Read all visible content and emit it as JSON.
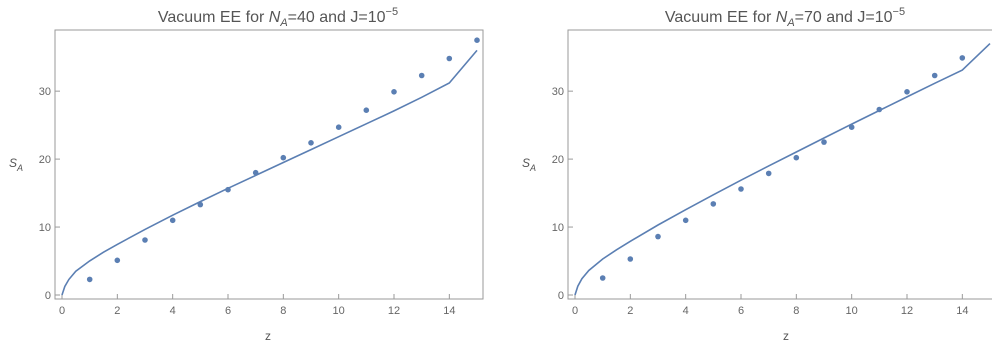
{
  "colors": {
    "series": "#5b7fb3",
    "frame": "#9a9a9a",
    "text": "#555555"
  },
  "chart_data": [
    {
      "type": "scatter",
      "title_main": "Vacuum EE for ",
      "title_n": "N",
      "title_sub": "A",
      "title_mid": "=40 and J=10",
      "title_exp": "−5",
      "xlabel": "z",
      "ylabel_main": "S",
      "ylabel_sub": "A",
      "xlim": [
        0,
        15
      ],
      "ylim": [
        0,
        39
      ],
      "xticks": [
        0,
        2,
        4,
        6,
        8,
        10,
        12,
        14
      ],
      "yticks": [
        0,
        10,
        20,
        30
      ],
      "grid": false,
      "series": [
        {
          "kind": "points",
          "x": [
            1,
            2,
            3,
            4,
            5,
            6,
            7,
            8,
            9,
            10,
            11,
            12,
            13,
            14,
            15
          ],
          "y": [
            2.3,
            5.1,
            8.1,
            11.0,
            13.3,
            15.5,
            18.0,
            20.2,
            22.4,
            24.7,
            27.2,
            29.9,
            32.3,
            34.8,
            37.5
          ]
        },
        {
          "kind": "curve",
          "x": [
            0,
            0.1,
            0.25,
            0.5,
            1,
            1.5,
            2,
            3,
            4,
            5,
            6,
            7,
            8,
            9,
            10,
            11,
            12,
            13,
            14,
            15
          ],
          "y": [
            0,
            1.25,
            2.3,
            3.5,
            5.02,
            6.3,
            7.45,
            9.65,
            11.75,
            13.75,
            15.7,
            17.6,
            19.5,
            21.4,
            23.3,
            25.2,
            27.1,
            29.1,
            31.2,
            36.0
          ]
        }
      ]
    },
    {
      "type": "scatter",
      "title_main": "Vacuum EE for ",
      "title_n": "N",
      "title_sub": "A",
      "title_mid": "=70 and J=10",
      "title_exp": "−5",
      "xlabel": "z",
      "ylabel_main": "S",
      "ylabel_sub": "A",
      "xlim": [
        0,
        15
      ],
      "ylim": [
        0,
        39
      ],
      "xticks": [
        0,
        2,
        4,
        6,
        8,
        10,
        12,
        14
      ],
      "yticks": [
        0,
        10,
        20,
        30
      ],
      "grid": false,
      "series": [
        {
          "kind": "points",
          "x": [
            1,
            2,
            3,
            4,
            5,
            6,
            7,
            8,
            9,
            10,
            11,
            12,
            13,
            14
          ],
          "y": [
            2.5,
            5.3,
            8.6,
            11.0,
            13.4,
            15.6,
            17.9,
            20.2,
            22.5,
            24.7,
            27.3,
            29.9,
            32.3,
            34.9
          ]
        },
        {
          "kind": "curve",
          "x": [
            0,
            0.1,
            0.25,
            0.5,
            1,
            1.5,
            2,
            3,
            4,
            5,
            6,
            7,
            8,
            9,
            10,
            11,
            12,
            13,
            14,
            15
          ],
          "y": [
            0,
            1.3,
            2.4,
            3.6,
            5.3,
            6.65,
            7.9,
            10.3,
            12.55,
            14.75,
            16.9,
            19.0,
            21.05,
            23.1,
            25.15,
            27.15,
            29.15,
            31.15,
            33.1,
            37.0
          ]
        }
      ]
    }
  ]
}
